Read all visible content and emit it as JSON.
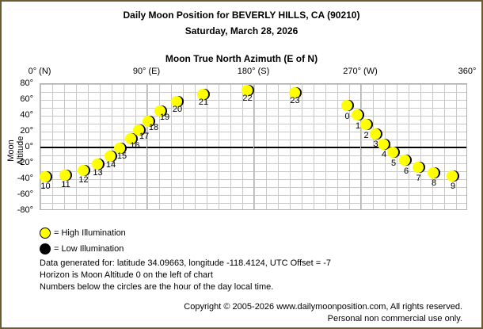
{
  "header": {
    "title": "Daily Moon Position for BEVERLY HILLS, CA (90210)",
    "date": "Saturday, March 28, 2026",
    "x_axis_title": "Moon True North Azimuth (E of N)"
  },
  "axes": {
    "x_ticks": [
      {
        "label": "0° (N)",
        "value": 0
      },
      {
        "label": "90° (E)",
        "value": 90
      },
      {
        "label": "180° (S)",
        "value": 180
      },
      {
        "label": "270° (W)",
        "value": 270
      },
      {
        "label": "360°",
        "value": 360
      }
    ],
    "y_ticks": [
      {
        "label": "80°",
        "value": 80
      },
      {
        "label": "60°",
        "value": 60
      },
      {
        "label": "40°",
        "value": 40
      },
      {
        "label": "20°",
        "value": 20
      },
      {
        "label": "0°",
        "value": 0
      },
      {
        "label": "-20°",
        "value": -20
      },
      {
        "label": "-40°",
        "value": -40
      },
      {
        "label": "-60°",
        "value": -60
      },
      {
        "label": "-80°",
        "value": -80
      }
    ],
    "y_label": "Moon Altitude"
  },
  "legend": {
    "high": "= High Illumination",
    "low": "= Low Illumination"
  },
  "info": {
    "line1": "Data generated for: latitude 34.09663, longitude -118.4124, UTC Offset = -7",
    "line2": "Horizon is Moon Altitude 0 on the left of chart",
    "line3": "Numbers below the circles are the hour of the day local time."
  },
  "footer": {
    "copyright": "Copyright © 2005-2026 www.dailymoonposition.com, All rights reserved.",
    "usage": "Personal non commercial use only."
  },
  "colors": {
    "border": "#6b5a32",
    "moon_high": "#ffff00",
    "moon_low": "#000000",
    "grid": "#c8c8c8"
  },
  "chart_data": {
    "type": "scatter",
    "title": "Daily Moon Position for BEVERLY HILLS, CA (90210)",
    "subtitle": "Saturday, March 28, 2026",
    "xlabel": "Moon True North Azimuth (E of N)",
    "ylabel": "Moon Altitude",
    "xlim": [
      0,
      360
    ],
    "ylim": [
      -80,
      80
    ],
    "grid": true,
    "x_tick_labels": [
      "0° (N)",
      "90° (E)",
      "180° (S)",
      "270° (W)",
      "360°"
    ],
    "y_tick_labels": [
      "80°",
      "60°",
      "40°",
      "20°",
      "0°",
      "-20°",
      "-40°",
      "-60°",
      "-80°"
    ],
    "legend": [
      "High Illumination",
      "Low Illumination"
    ],
    "points": [
      {
        "hour": 0,
        "azimuth": 259,
        "altitude": 52,
        "illumination": "high",
        "lx": 0,
        "ly": 10
      },
      {
        "hour": 1,
        "azimuth": 268,
        "altitude": 40,
        "illumination": "high",
        "lx": 0,
        "ly": 10
      },
      {
        "hour": 2,
        "azimuth": 275,
        "altitude": 28,
        "illumination": "high",
        "lx": 0,
        "ly": 10
      },
      {
        "hour": 3,
        "azimuth": 283,
        "altitude": 16,
        "illumination": "high",
        "lx": 0,
        "ly": 9
      },
      {
        "hour": 4,
        "azimuth": 290,
        "altitude": 3,
        "illumination": "high",
        "lx": 0,
        "ly": 9
      },
      {
        "hour": 5,
        "azimuth": 298,
        "altitude": -7,
        "illumination": "high",
        "lx": 0,
        "ly": 10
      },
      {
        "hour": 6,
        "azimuth": 308,
        "altitude": -17,
        "illumination": "high",
        "lx": 1,
        "ly": 10
      },
      {
        "hour": 7,
        "azimuth": 319,
        "altitude": -26,
        "illumination": "high",
        "lx": 0,
        "ly": 10
      },
      {
        "hour": 8,
        "azimuth": 332,
        "altitude": -33,
        "illumination": "high",
        "lx": 0,
        "ly": 9
      },
      {
        "hour": 9,
        "azimuth": 348,
        "altitude": -37,
        "illumination": "high",
        "lx": 0,
        "ly": 9
      },
      {
        "hour": 10,
        "azimuth": 5,
        "altitude": -38,
        "illumination": "high",
        "lx": 0,
        "ly": 8
      },
      {
        "hour": 11,
        "azimuth": 22,
        "altitude": -36,
        "illumination": "high",
        "lx": 0,
        "ly": 8
      },
      {
        "hour": 12,
        "azimuth": 37,
        "altitude": -30,
        "illumination": "high",
        "lx": 0,
        "ly": 8
      },
      {
        "hour": 13,
        "azimuth": 49,
        "altitude": -22,
        "illumination": "high",
        "lx": 0,
        "ly": 7
      },
      {
        "hour": 14,
        "azimuth": 60,
        "altitude": -12,
        "illumination": "high",
        "lx": 0,
        "ly": 7
      },
      {
        "hour": 15,
        "azimuth": 68,
        "altitude": -2,
        "illumination": "high",
        "lx": 2,
        "ly": 6
      },
      {
        "hour": 16,
        "azimuth": 77,
        "altitude": 10,
        "illumination": "high",
        "lx": 5,
        "ly": 5
      },
      {
        "hour": 17,
        "azimuth": 84,
        "altitude": 21,
        "illumination": "high",
        "lx": 6,
        "ly": 4
      },
      {
        "hour": 18,
        "azimuth": 92,
        "altitude": 32,
        "illumination": "high",
        "lx": 6,
        "ly": 4
      },
      {
        "hour": 19,
        "azimuth": 102,
        "altitude": 45,
        "illumination": "high",
        "lx": 5,
        "ly": 4
      },
      {
        "hour": 20,
        "azimuth": 116,
        "altitude": 57,
        "illumination": "high",
        "lx": 0,
        "ly": 6
      },
      {
        "hour": 21,
        "azimuth": 138,
        "altitude": 66,
        "illumination": "high",
        "lx": 0,
        "ly": 6
      },
      {
        "hour": 22,
        "azimuth": 175,
        "altitude": 71,
        "illumination": "high",
        "lx": 0,
        "ly": 6
      },
      {
        "hour": 23,
        "azimuth": 215,
        "altitude": 68,
        "illumination": "high",
        "lx": 0,
        "ly": 6
      }
    ]
  }
}
